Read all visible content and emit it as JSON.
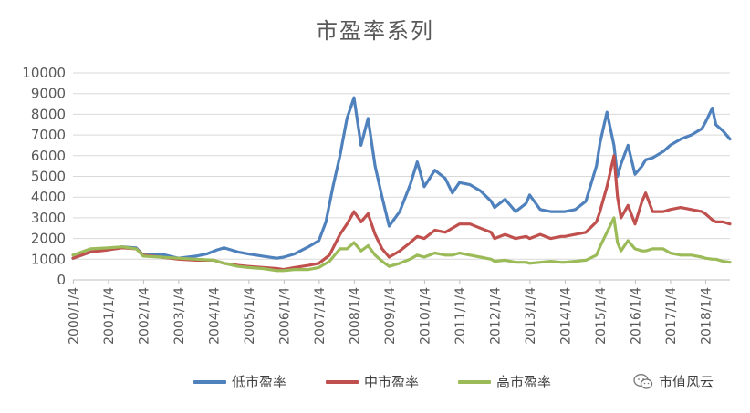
{
  "chart_data": {
    "type": "line",
    "title": "市盈率系列",
    "xlabel": "",
    "ylabel": "",
    "ylim": [
      0,
      10000
    ],
    "yticks": [
      0,
      1000,
      2000,
      3000,
      4000,
      5000,
      6000,
      7000,
      8000,
      9000,
      10000
    ],
    "xticks": [
      "2000/1/4",
      "2001/1/4",
      "2002/1/4",
      "2003/1/4",
      "2004/1/4",
      "2005/1/4",
      "2006/1/4",
      "2007/1/4",
      "2008/1/4",
      "2009/1/4",
      "2010/1/4",
      "2011/1/4",
      "2012/1/4",
      "2013/1/4",
      "2014/1/4",
      "2015/1/4",
      "2016/1/4",
      "2017/1/4",
      "2018/1/4"
    ],
    "xlim": [
      2000.0,
      2018.7
    ],
    "grid": true,
    "legend_position": "bottom",
    "series": [
      {
        "name": "低市盈率",
        "color": "#4f81bd",
        "x": [
          2000.0,
          2000.5,
          2001.0,
          2001.4,
          2001.8,
          2002.0,
          2002.5,
          2003.0,
          2003.5,
          2003.8,
          2004.1,
          2004.3,
          2004.7,
          2005.0,
          2005.4,
          2005.8,
          2006.0,
          2006.3,
          2006.7,
          2007.0,
          2007.2,
          2007.4,
          2007.6,
          2007.8,
          2008.0,
          2008.2,
          2008.4,
          2008.6,
          2008.8,
          2009.0,
          2009.3,
          2009.6,
          2009.8,
          2010.0,
          2010.3,
          2010.6,
          2010.8,
          2011.0,
          2011.3,
          2011.6,
          2011.9,
          2012.0,
          2012.3,
          2012.6,
          2012.9,
          2013.0,
          2013.3,
          2013.6,
          2013.9,
          2014.0,
          2014.3,
          2014.6,
          2014.9,
          2015.0,
          2015.2,
          2015.4,
          2015.5,
          2015.6,
          2015.8,
          2016.0,
          2016.2,
          2016.3,
          2016.5,
          2016.8,
          2017.0,
          2017.3,
          2017.6,
          2017.9,
          2018.0,
          2018.2,
          2018.3,
          2018.5,
          2018.7
        ],
        "values": [
          1050,
          1350,
          1500,
          1600,
          1550,
          1200,
          1250,
          1050,
          1150,
          1250,
          1450,
          1550,
          1350,
          1250,
          1150,
          1050,
          1100,
          1250,
          1600,
          1900,
          2800,
          4500,
          6000,
          7800,
          8800,
          6500,
          7800,
          5500,
          4000,
          2600,
          3300,
          4600,
          5700,
          4500,
          5300,
          4900,
          4200,
          4700,
          4600,
          4300,
          3800,
          3500,
          3900,
          3300,
          3700,
          4100,
          3400,
          3300,
          3300,
          3300,
          3400,
          3800,
          5500,
          6600,
          8100,
          6500,
          5000,
          5600,
          6500,
          5100,
          5500,
          5800,
          5900,
          6200,
          6500,
          6800,
          7000,
          7300,
          7600,
          8300,
          7500,
          7200,
          6800
        ]
      },
      {
        "name": "中市盈率",
        "color": "#c0504d",
        "x": [
          2000.0,
          2000.5,
          2001.0,
          2001.4,
          2001.8,
          2002.0,
          2002.5,
          2003.0,
          2003.5,
          2004.0,
          2004.3,
          2004.7,
          2005.0,
          2005.4,
          2005.8,
          2006.0,
          2006.3,
          2006.7,
          2007.0,
          2007.3,
          2007.6,
          2007.8,
          2008.0,
          2008.2,
          2008.4,
          2008.6,
          2008.8,
          2009.0,
          2009.3,
          2009.6,
          2009.8,
          2010.0,
          2010.3,
          2010.6,
          2010.8,
          2011.0,
          2011.3,
          2011.6,
          2011.9,
          2012.0,
          2012.3,
          2012.6,
          2012.9,
          2013.0,
          2013.3,
          2013.6,
          2013.9,
          2014.0,
          2014.3,
          2014.6,
          2014.9,
          2015.0,
          2015.2,
          2015.4,
          2015.5,
          2015.6,
          2015.8,
          2016.0,
          2016.2,
          2016.3,
          2016.5,
          2016.8,
          2017.0,
          2017.3,
          2017.6,
          2017.9,
          2018.0,
          2018.2,
          2018.3,
          2018.5,
          2018.7
        ],
        "values": [
          1050,
          1350,
          1450,
          1550,
          1500,
          1200,
          1100,
          1000,
          950,
          950,
          800,
          700,
          650,
          600,
          550,
          500,
          600,
          700,
          800,
          1200,
          2200,
          2700,
          3300,
          2800,
          3200,
          2200,
          1500,
          1100,
          1400,
          1800,
          2100,
          2000,
          2400,
          2300,
          2500,
          2700,
          2700,
          2500,
          2300,
          2000,
          2200,
          2000,
          2100,
          2000,
          2200,
          2000,
          2100,
          2100,
          2200,
          2300,
          2800,
          3300,
          4500,
          6000,
          4000,
          3000,
          3600,
          2700,
          3800,
          4200,
          3300,
          3300,
          3400,
          3500,
          3400,
          3300,
          3200,
          2900,
          2800,
          2800,
          2700
        ]
      },
      {
        "name": "高市盈率",
        "color": "#9bbb59",
        "x": [
          2000.0,
          2000.5,
          2001.0,
          2001.4,
          2001.8,
          2002.0,
          2002.5,
          2003.0,
          2003.5,
          2004.0,
          2004.3,
          2004.7,
          2005.0,
          2005.4,
          2005.8,
          2006.0,
          2006.3,
          2006.7,
          2007.0,
          2007.3,
          2007.6,
          2007.8,
          2008.0,
          2008.2,
          2008.4,
          2008.6,
          2008.8,
          2009.0,
          2009.3,
          2009.6,
          2009.8,
          2010.0,
          2010.3,
          2010.6,
          2010.8,
          2011.0,
          2011.3,
          2011.6,
          2011.9,
          2012.0,
          2012.3,
          2012.6,
          2012.9,
          2013.0,
          2013.3,
          2013.6,
          2013.9,
          2014.0,
          2014.3,
          2014.6,
          2014.9,
          2015.0,
          2015.2,
          2015.4,
          2015.5,
          2015.6,
          2015.8,
          2016.0,
          2016.2,
          2016.3,
          2016.5,
          2016.8,
          2017.0,
          2017.3,
          2017.6,
          2017.9,
          2018.0,
          2018.2,
          2018.3,
          2018.5,
          2018.7
        ],
        "values": [
          1200,
          1500,
          1550,
          1600,
          1500,
          1150,
          1100,
          1050,
          1000,
          950,
          800,
          650,
          600,
          550,
          450,
          450,
          500,
          500,
          600,
          900,
          1500,
          1500,
          1800,
          1400,
          1650,
          1200,
          900,
          650,
          800,
          1000,
          1200,
          1100,
          1300,
          1200,
          1200,
          1300,
          1200,
          1100,
          1000,
          900,
          950,
          850,
          850,
          800,
          850,
          900,
          850,
          850,
          900,
          950,
          1200,
          1600,
          2300,
          3000,
          1800,
          1400,
          1900,
          1500,
          1400,
          1400,
          1500,
          1500,
          1300,
          1200,
          1200,
          1100,
          1050,
          1000,
          1000,
          900,
          850
        ]
      }
    ]
  },
  "watermark": {
    "text": "市值风云",
    "icon": "wechat-icon"
  }
}
